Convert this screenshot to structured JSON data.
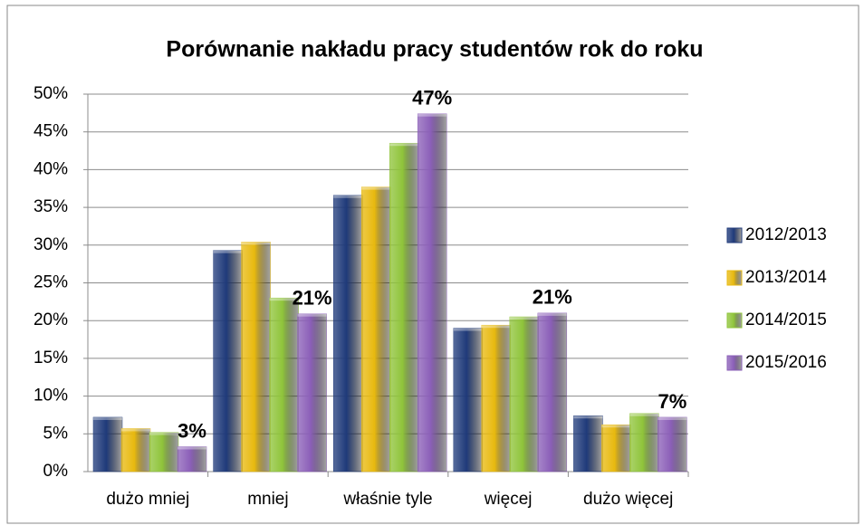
{
  "chart_data": {
    "type": "bar",
    "title": "Porównanie nakładu pracy studentów rok do roku",
    "categories": [
      "dużo mniej",
      "mniej",
      "właśnie tyle",
      "więcej",
      "dużo więcej"
    ],
    "series": [
      {
        "name": "2012/2013",
        "color": "#1f3a7a",
        "values": [
          7.2,
          29.3,
          36.6,
          19.0,
          7.4
        ]
      },
      {
        "name": "2013/2014",
        "color": "#e8b90e",
        "values": [
          5.7,
          30.4,
          37.7,
          19.4,
          6.2
        ]
      },
      {
        "name": "2014/2015",
        "color": "#8fc43a",
        "values": [
          5.2,
          23.0,
          43.5,
          20.5,
          7.7
        ]
      },
      {
        "name": "2015/2016",
        "color": "#8b5fb8",
        "values": [
          3.3,
          20.9,
          47.4,
          21.0,
          7.2
        ],
        "value_labels": [
          "3%",
          "21%",
          "47%",
          "21%",
          "7%"
        ]
      }
    ],
    "ylim": [
      0,
      50
    ],
    "yticks": [
      {
        "value": 0,
        "label": "0%"
      },
      {
        "value": 5,
        "label": "5%"
      },
      {
        "value": 10,
        "label": "10%"
      },
      {
        "value": 15,
        "label": "15%"
      },
      {
        "value": 20,
        "label": "20%"
      },
      {
        "value": 25,
        "label": "25%"
      },
      {
        "value": 30,
        "label": "30%"
      },
      {
        "value": 35,
        "label": "35%"
      },
      {
        "value": 40,
        "label": "40%"
      },
      {
        "value": 45,
        "label": "45%"
      },
      {
        "value": 50,
        "label": "50%"
      }
    ],
    "grid": true,
    "legend": "right"
  }
}
